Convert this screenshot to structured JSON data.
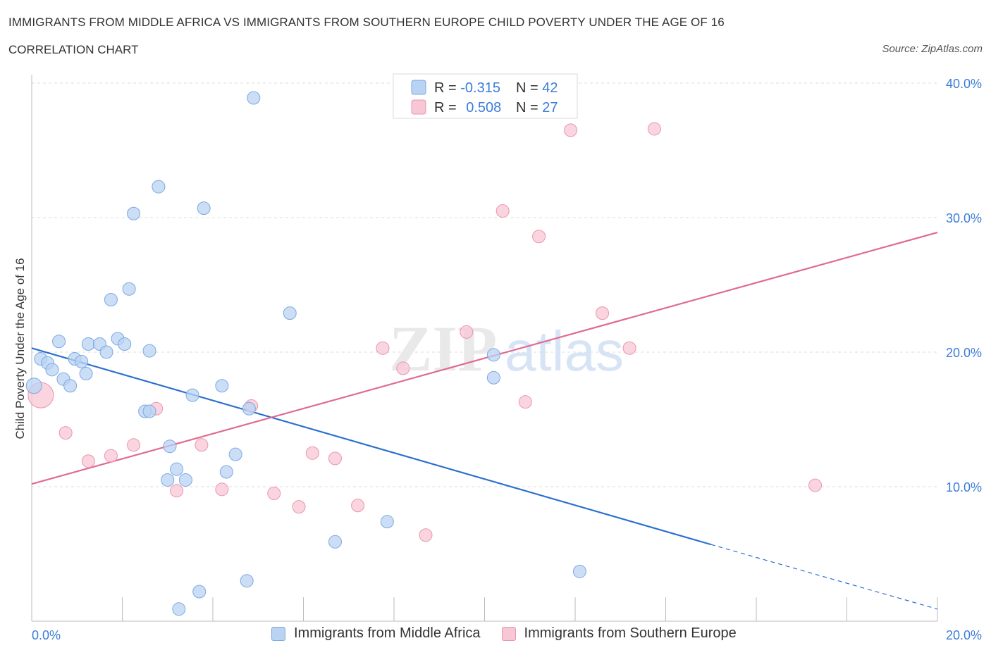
{
  "header": {
    "title": "IMMIGRANTS FROM MIDDLE AFRICA VS IMMIGRANTS FROM SOUTHERN EUROPE CHILD POVERTY UNDER THE AGE OF 16",
    "subtitle": "CORRELATION CHART",
    "source": "Source: ZipAtlas.com"
  },
  "watermark": {
    "zip": "ZIP",
    "atlas": "atlas"
  },
  "colors": {
    "blue_fill": "#b9d3f3",
    "blue_stroke": "#7aa9e3",
    "blue_line": "#2b6fd0",
    "pink_fill": "#f8c7d6",
    "pink_stroke": "#ea95b0",
    "pink_line": "#e06a93",
    "tick_color": "#3b7dd8"
  },
  "legend": {
    "series1": {
      "r_label": "R = ",
      "r_value": "-0.315",
      "n_label": "N = ",
      "n_value": "42"
    },
    "series2": {
      "r_label": "R = ",
      "r_value": "0.508",
      "n_label": "N = ",
      "n_value": "27"
    }
  },
  "chart_data": {
    "type": "scatter",
    "title": "IMMIGRANTS FROM MIDDLE AFRICA VS IMMIGRANTS FROM SOUTHERN EUROPE CHILD POVERTY UNDER THE AGE OF 16",
    "xlabel": "",
    "ylabel": "Child Poverty Under the Age of 16",
    "xlim": [
      0,
      20
    ],
    "ylim": [
      0,
      40
    ],
    "x_tick_labels": [
      "0.0%",
      "20.0%"
    ],
    "y_tick_labels": [
      "10.0%",
      "20.0%",
      "30.0%",
      "40.0%"
    ],
    "y_ticks": [
      10,
      20,
      30,
      40
    ],
    "legend_position": "top-center",
    "series": [
      {
        "name": "Immigrants from Middle Africa",
        "color": "blue",
        "r": -0.315,
        "n": 42,
        "trend": {
          "x0": 0,
          "y0": 20.3,
          "x1": 15.0,
          "y1": 5.7,
          "dash_to_x": 20,
          "dash_to_y": 0.9
        },
        "points": [
          [
            0.05,
            17.5
          ],
          [
            0.2,
            19.5
          ],
          [
            0.35,
            19.2
          ],
          [
            0.45,
            18.7
          ],
          [
            0.6,
            20.8
          ],
          [
            0.7,
            18.0
          ],
          [
            0.85,
            17.5
          ],
          [
            0.95,
            19.5
          ],
          [
            1.1,
            19.3
          ],
          [
            1.2,
            18.4
          ],
          [
            1.25,
            20.6
          ],
          [
            1.5,
            20.6
          ],
          [
            1.65,
            20.0
          ],
          [
            1.75,
            23.9
          ],
          [
            1.9,
            21.0
          ],
          [
            2.05,
            20.6
          ],
          [
            2.15,
            24.7
          ],
          [
            2.25,
            30.3
          ],
          [
            2.5,
            15.6
          ],
          [
            2.6,
            15.6
          ],
          [
            2.6,
            20.1
          ],
          [
            2.8,
            32.3
          ],
          [
            3.0,
            10.5
          ],
          [
            3.05,
            13.0
          ],
          [
            3.2,
            11.3
          ],
          [
            3.25,
            0.9
          ],
          [
            3.4,
            10.5
          ],
          [
            3.55,
            16.8
          ],
          [
            3.7,
            2.2
          ],
          [
            3.8,
            30.7
          ],
          [
            4.2,
            17.5
          ],
          [
            4.3,
            11.1
          ],
          [
            4.5,
            12.4
          ],
          [
            4.75,
            3.0
          ],
          [
            4.8,
            15.8
          ],
          [
            4.9,
            38.9
          ],
          [
            5.7,
            22.9
          ],
          [
            6.7,
            5.9
          ],
          [
            7.85,
            7.4
          ],
          [
            10.2,
            19.8
          ],
          [
            10.2,
            18.1
          ],
          [
            12.1,
            3.7
          ]
        ]
      },
      {
        "name": "Immigrants from Southern Europe",
        "color": "pink",
        "r": 0.508,
        "n": 27,
        "trend": {
          "x0": 0,
          "y0": 10.2,
          "x1": 20,
          "y1": 28.9
        },
        "points": [
          [
            0.2,
            16.8
          ],
          [
            0.75,
            14.0
          ],
          [
            1.25,
            11.9
          ],
          [
            1.75,
            12.3
          ],
          [
            2.25,
            13.1
          ],
          [
            2.75,
            15.8
          ],
          [
            3.2,
            9.7
          ],
          [
            3.75,
            13.1
          ],
          [
            4.2,
            9.8
          ],
          [
            4.85,
            16.0
          ],
          [
            5.35,
            9.5
          ],
          [
            5.9,
            8.5
          ],
          [
            6.2,
            12.5
          ],
          [
            6.7,
            12.1
          ],
          [
            7.2,
            8.6
          ],
          [
            7.75,
            20.3
          ],
          [
            8.2,
            18.8
          ],
          [
            8.7,
            6.4
          ],
          [
            9.6,
            21.5
          ],
          [
            10.4,
            30.5
          ],
          [
            10.9,
            16.3
          ],
          [
            11.2,
            28.6
          ],
          [
            11.9,
            36.5
          ],
          [
            12.6,
            22.9
          ],
          [
            13.2,
            20.3
          ],
          [
            13.75,
            36.6
          ],
          [
            17.3,
            10.1
          ]
        ]
      }
    ]
  }
}
